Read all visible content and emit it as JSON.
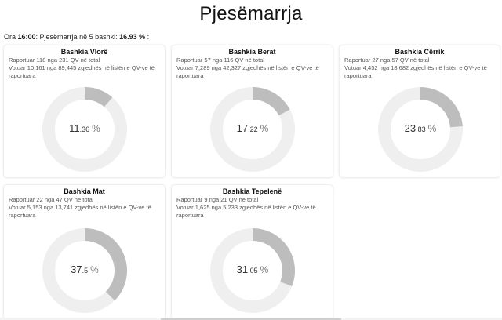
{
  "page": {
    "title": "Pjesëmarrja"
  },
  "summary": {
    "prefix": "Ora ",
    "time": "16:00",
    "middle": ": Pjesëmarrja në 5 bashki: ",
    "value": "16.93 %",
    "suffix": " :"
  },
  "colors": {
    "ring_bg": "#efefef",
    "ring_fill": "#bdbdbd"
  },
  "cards": [
    {
      "title": "Bashkia Vlorë",
      "reported": "Raportuar 118 nga 231 QV në total",
      "voted": "Votuar 10,161 nga 89,445 zgjedhës në listën e QV-ve të raportuara",
      "pct_int": "11",
      "pct_dec": ".36",
      "pct_sign": "%",
      "value": 11.36
    },
    {
      "title": "Bashkia Berat",
      "reported": "Raportuar 57 nga 116 QV në total",
      "voted": "Votuar 7,289 nga 42,327 zgjedhës në listën e QV-ve të raportuara",
      "pct_int": "17",
      "pct_dec": ".22",
      "pct_sign": "%",
      "value": 17.22
    },
    {
      "title": "Bashkia Cërrik",
      "reported": "Raportuar 27 nga 57 QV në total",
      "voted": "Votuar 4,452 nga 18,682 zgjedhës në listën e QV-ve të raportuara",
      "pct_int": "23",
      "pct_dec": ".83",
      "pct_sign": "%",
      "value": 23.83
    },
    {
      "title": "Bashkia Mat",
      "reported": "Raportuar 22 nga 47 QV në total",
      "voted": "Votuar 5,153 nga 13,741 zgjedhës në listën e QV-ve të raportuara",
      "pct_int": "37",
      "pct_dec": ".5",
      "pct_sign": "%",
      "value": 37.5
    },
    {
      "title": "Bashkia Tepelenë",
      "reported": "Raportuar 9 nga 21 QV në total",
      "voted": "Votuar 1,625 nga 5,233 zgjedhës në listën e QV-ve të raportuara",
      "pct_int": "31",
      "pct_dec": ".05",
      "pct_sign": "%",
      "value": 31.05
    }
  ]
}
